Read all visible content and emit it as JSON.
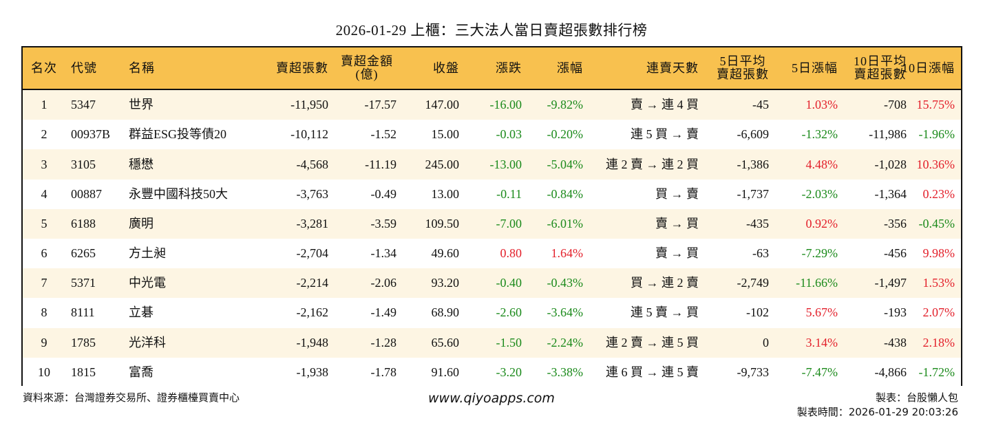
{
  "title": "2026-01-29 上櫃：三大法人當日賣超張數排行榜",
  "colors": {
    "header_bg": "#f8c14f",
    "odd_row_bg": "#fdf5e3",
    "up": "#e3202b",
    "down": "#1b8a1b"
  },
  "columns": [
    "名次",
    "代號",
    "名稱",
    "賣超張數",
    "賣超金額\n(億)",
    "收盤",
    "漲跌",
    "漲幅",
    "連賣天數",
    "5日平均\n賣超張數",
    "5日漲幅",
    "10日平均\n賣超張數",
    "10日漲幅"
  ],
  "rows": [
    [
      "1",
      "5347",
      "世界",
      "-11,950",
      "-17.57",
      "147.00",
      "-16.00",
      "-9.82%",
      "賣 → 連 4 買",
      "-45",
      "1.03%",
      "-708",
      "15.75%"
    ],
    [
      "2",
      "00937B",
      "群益ESG投等債20",
      "-10,112",
      "-1.52",
      "15.00",
      "-0.03",
      "-0.20%",
      "連 5 買 → 賣",
      "-6,609",
      "-1.32%",
      "-11,986",
      "-1.96%"
    ],
    [
      "3",
      "3105",
      "穩懋",
      "-4,568",
      "-11.19",
      "245.00",
      "-13.00",
      "-5.04%",
      "連 2 賣 → 連 2 買",
      "-1,386",
      "4.48%",
      "-1,028",
      "10.36%"
    ],
    [
      "4",
      "00887",
      "永豐中國科技50大",
      "-3,763",
      "-0.49",
      "13.00",
      "-0.11",
      "-0.84%",
      "買 → 賣",
      "-1,737",
      "-2.03%",
      "-1,364",
      "0.23%"
    ],
    [
      "5",
      "6188",
      "廣明",
      "-3,281",
      "-3.59",
      "109.50",
      "-7.00",
      "-6.01%",
      "賣 → 買",
      "-435",
      "0.92%",
      "-356",
      "-0.45%"
    ],
    [
      "6",
      "6265",
      "方土昶",
      "-2,704",
      "-1.34",
      "49.60",
      "0.80",
      "1.64%",
      "賣 → 買",
      "-63",
      "-7.29%",
      "-456",
      "9.98%"
    ],
    [
      "7",
      "5371",
      "中光電",
      "-2,214",
      "-2.06",
      "93.20",
      "-0.40",
      "-0.43%",
      "買 → 連 2 賣",
      "-2,749",
      "-11.66%",
      "-1,497",
      "1.53%"
    ],
    [
      "8",
      "8111",
      "立碁",
      "-2,162",
      "-1.49",
      "68.90",
      "-2.60",
      "-3.64%",
      "連 5 賣 → 買",
      "-102",
      "5.67%",
      "-193",
      "2.07%"
    ],
    [
      "9",
      "1785",
      "光洋科",
      "-1,948",
      "-1.28",
      "65.60",
      "-1.50",
      "-2.24%",
      "連 2 賣 → 連 5 買",
      "0",
      "3.14%",
      "-438",
      "2.18%"
    ],
    [
      "10",
      "1815",
      "富喬",
      "-1,938",
      "-1.78",
      "91.60",
      "-3.20",
      "-3.38%",
      "連 6 買 → 連 5 賣",
      "-9,733",
      "-7.47%",
      "-4,866",
      "-1.72%"
    ]
  ],
  "footer": {
    "source": "資料來源：台灣證券交易所、證券櫃檯買賣中心",
    "website": "www.qiyoapps.com",
    "author": "製表：台股懶人包",
    "generated": "製表時間：2026-01-29 20:03:26"
  }
}
